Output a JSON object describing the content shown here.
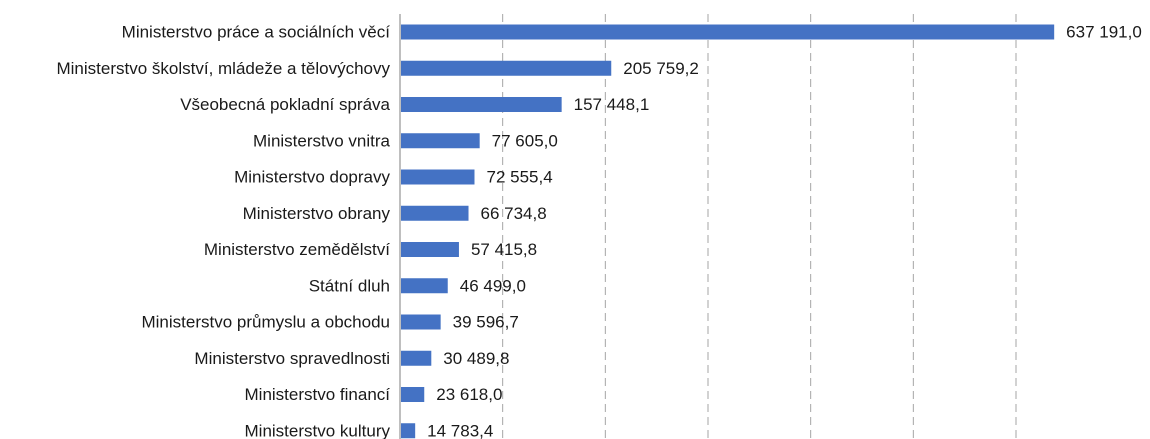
{
  "chart_data": {
    "type": "bar",
    "orientation": "horizontal",
    "categories": [
      "Ministerstvo práce a sociálních věcí",
      "Ministerstvo školství, mládeže a tělovýchovy",
      "Všeobecná pokladní správa",
      "Ministerstvo vnitra",
      "Ministerstvo dopravy",
      "Ministerstvo obrany",
      "Ministerstvo zemědělství",
      "Státní dluh",
      "Ministerstvo průmyslu a obchodu",
      "Ministerstvo spravedlnosti",
      "Ministerstvo financí",
      "Ministerstvo kultury"
    ],
    "values": [
      637191.0,
      205759.2,
      157448.1,
      77605.0,
      72555.4,
      66734.8,
      57415.8,
      46499.0,
      39596.7,
      30489.8,
      23618.0,
      14783.4
    ],
    "value_labels": [
      "637 191,0",
      "205 759,2",
      "157 448,1",
      "77 605,0",
      "72 555,4",
      "66 734,8",
      "57 415,8",
      "46 499,0",
      "39 596,7",
      "30 489,8",
      "23 618,0",
      "14 783,4"
    ],
    "xlim": [
      0,
      700000
    ],
    "gridlines": [
      0,
      100000,
      200000,
      300000,
      400000,
      500000,
      600000
    ],
    "grid": "dashed vertical",
    "legend": "none",
    "bar_color": "#4472C4",
    "grid_color": "#a6a6a6",
    "axis_color": "#7f7f7f"
  }
}
